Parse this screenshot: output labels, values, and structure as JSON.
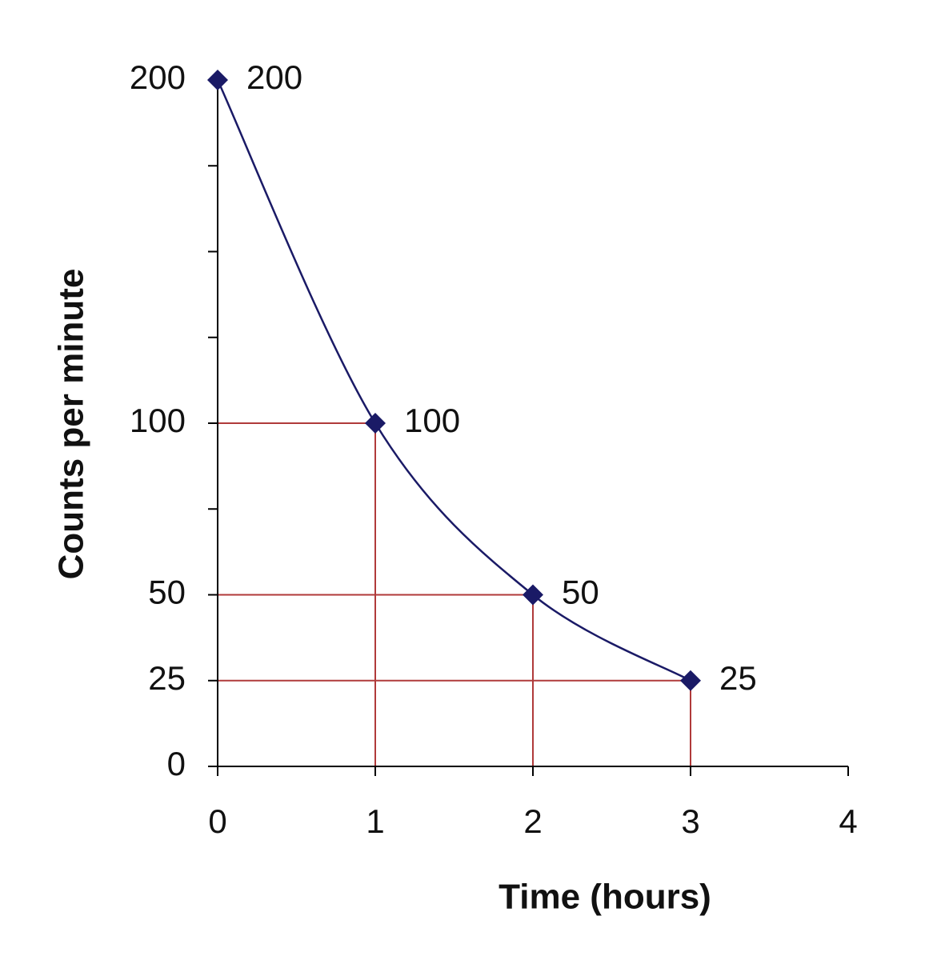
{
  "chart_data": {
    "type": "line",
    "x_label": "Time (hours)",
    "y_label": "Counts per minute",
    "x": [
      0,
      1,
      2,
      3
    ],
    "series": [
      {
        "color": "#1a1a66",
        "values": [
          200,
          100,
          50,
          25
        ]
      }
    ],
    "xlim": [
      0,
      4
    ],
    "xticks": [
      0,
      1,
      2,
      3,
      4
    ],
    "ylim": [
      0,
      200
    ],
    "yticks": [
      0,
      25,
      50,
      100,
      200
    ],
    "yminorticks": [
      75,
      125,
      150,
      175
    ],
    "guide_color": "#b03a3a",
    "smooth": true,
    "data_labels": true
  }
}
